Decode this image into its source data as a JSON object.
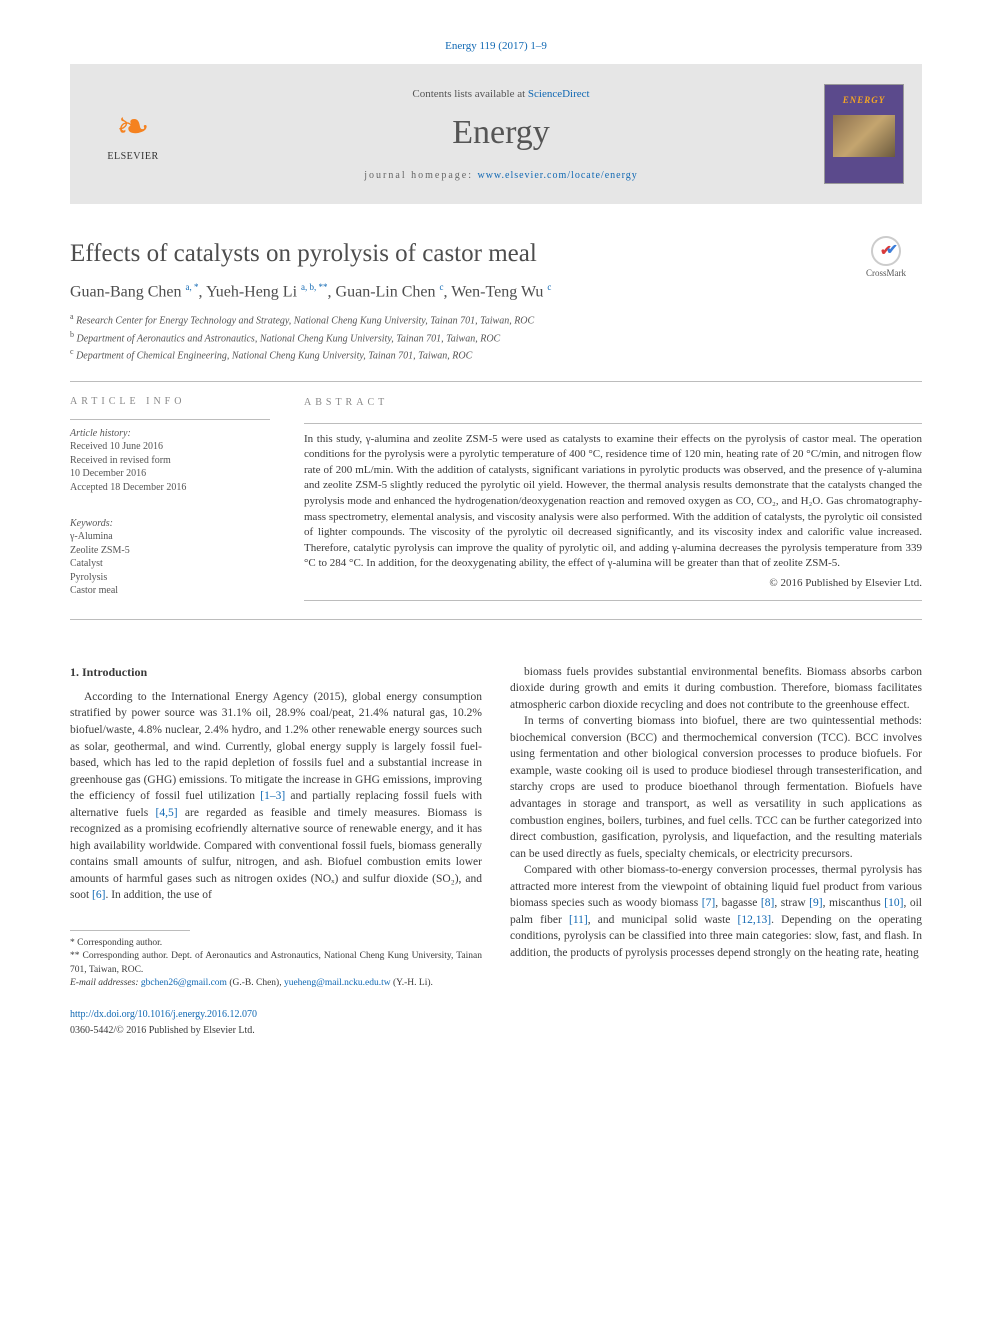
{
  "citation": "Energy 119 (2017) 1–9",
  "banner": {
    "contents_prefix": "Contents lists available at ",
    "contents_link": "ScienceDirect",
    "journal": "Energy",
    "homepage_prefix": "journal homepage: ",
    "homepage_url": "www.elsevier.com/locate/energy",
    "publisher": "ELSEVIER",
    "cover_label": "ENERGY"
  },
  "crossmark": "CrossMark",
  "title": "Effects of catalysts on pyrolysis of castor meal",
  "authors_html": "Guan-Bang Chen <sup>a, *</sup>, Yueh-Heng Li <sup>a, b, **</sup>, Guan-Lin Chen <sup>c</sup>, Wen-Teng Wu <sup>c</sup>",
  "affiliations": [
    {
      "sup": "a",
      "text": "Research Center for Energy Technology and Strategy, National Cheng Kung University, Tainan 701, Taiwan, ROC"
    },
    {
      "sup": "b",
      "text": "Department of Aeronautics and Astronautics, National Cheng Kung University, Tainan 701, Taiwan, ROC"
    },
    {
      "sup": "c",
      "text": "Department of Chemical Engineering, National Cheng Kung University, Tainan 701, Taiwan, ROC"
    }
  ],
  "info": {
    "label": "ARTICLE INFO",
    "history_head": "Article history:",
    "history": [
      "Received 10 June 2016",
      "Received in revised form",
      "10 December 2016",
      "Accepted 18 December 2016"
    ],
    "keywords_head": "Keywords:",
    "keywords": [
      "γ-Alumina",
      "Zeolite ZSM-5",
      "Catalyst",
      "Pyrolysis",
      "Castor meal"
    ]
  },
  "abstract": {
    "label": "ABSTRACT",
    "text": "In this study, γ-alumina and zeolite ZSM-5 were used as catalysts to examine their effects on the pyrolysis of castor meal. The operation conditions for the pyrolysis were a pyrolytic temperature of 400 °C, residence time of 120 min, heating rate of 20 °C/min, and nitrogen flow rate of 200 mL/min. With the addition of catalysts, significant variations in pyrolytic products was observed, and the presence of γ-alumina and zeolite ZSM-5 slightly reduced the pyrolytic oil yield. However, the thermal analysis results demonstrate that the catalysts changed the pyrolysis mode and enhanced the hydrogenation/deoxygenation reaction and removed oxygen as CO, CO₂, and H₂O. Gas chromatography-mass spectrometry, elemental analysis, and viscosity analysis were also performed. With the addition of catalysts, the pyrolytic oil consisted of lighter compounds. The viscosity of the pyrolytic oil decreased significantly, and its viscosity index and calorific value increased. Therefore, catalytic pyrolysis can improve the quality of pyrolytic oil, and adding γ-alumina decreases the pyrolysis temperature from 339 °C to 284 °C. In addition, for the deoxygenating ability, the effect of γ-alumina will be greater than that of zeolite ZSM-5.",
    "copyright": "© 2016 Published by Elsevier Ltd."
  },
  "sections": {
    "intro_head": "1. Introduction",
    "left_paras": [
      "According to the International Energy Agency (2015), global energy consumption stratified by power source was 31.1% oil, 28.9% coal/peat, 21.4% natural gas, 10.2% biofuel/waste, 4.8% nuclear, 2.4% hydro, and 1.2% other renewable energy sources such as solar, geothermal, and wind. Currently, global energy supply is largely fossil fuel-based, which has led to the rapid depletion of fossils fuel and a substantial increase in greenhouse gas (GHG) emissions. To mitigate the increase in GHG emissions, improving the efficiency of fossil fuel utilization <span class=\"ref\">[1–3]</span> and partially replacing fossil fuels with alternative fuels <span class=\"ref\">[4,5]</span> are regarded as feasible and timely measures. Biomass is recognized as a promising ecofriendly alternative source of renewable energy, and it has high availability worldwide. Compared with conventional fossil fuels, biomass generally contains small amounts of sulfur, nitrogen, and ash. Biofuel combustion emits lower amounts of harmful gases such as nitrogen oxides (NOₓ) and sulfur dioxide (SO₂), and soot <span class=\"ref\">[6]</span>. In addition, the use of"
    ],
    "right_paras": [
      "biomass fuels provides substantial environmental benefits. Biomass absorbs carbon dioxide during growth and emits it during combustion. Therefore, biomass facilitates atmospheric carbon dioxide recycling and does not contribute to the greenhouse effect.",
      "In terms of converting biomass into biofuel, there are two quintessential methods: biochemical conversion (BCC) and thermochemical conversion (TCC). BCC involves using fermentation and other biological conversion processes to produce biofuels. For example, waste cooking oil is used to produce biodiesel through transesterification, and starchy crops are used to produce bioethanol through fermentation. Biofuels have advantages in storage and transport, as well as versatility in such applications as combustion engines, boilers, turbines, and fuel cells. TCC can be further categorized into direct combustion, gasification, pyrolysis, and liquefaction, and the resulting materials can be used directly as fuels, specialty chemicals, or electricity precursors.",
      "Compared with other biomass-to-energy conversion processes, thermal pyrolysis has attracted more interest from the viewpoint of obtaining liquid fuel product from various biomass species such as woody biomass <span class=\"ref\">[7]</span>, bagasse <span class=\"ref\">[8]</span>, straw <span class=\"ref\">[9]</span>, miscanthus <span class=\"ref\">[10]</span>, oil palm fiber <span class=\"ref\">[11]</span>, and municipal solid waste <span class=\"ref\">[12,13]</span>. Depending on the operating conditions, pyrolysis can be classified into three main categories: slow, fast, and flash. In addition, the products of pyrolysis processes depend strongly on the heating rate, heating"
    ]
  },
  "footnotes": {
    "star1": "* Corresponding author.",
    "star2": "** Corresponding author. Dept. of Aeronautics and Astronautics, National Cheng Kung University, Tainan 701, Taiwan, ROC.",
    "email_label": "E-mail addresses: ",
    "email1": "gbchen26@gmail.com",
    "email1_who": " (G.-B. Chen), ",
    "email2": "yueheng@mail.ncku.edu.tw",
    "email2_who": " (Y.-H. Li)."
  },
  "footer": {
    "doi": "http://dx.doi.org/10.1016/j.energy.2016.12.070",
    "issn": "0360-5442/© 2016 Published by Elsevier Ltd."
  },
  "colors": {
    "link": "#1068b3",
    "banner_bg": "#e6e6e6",
    "text": "#3a3a3a",
    "elsevier_orange": "#f58220"
  }
}
